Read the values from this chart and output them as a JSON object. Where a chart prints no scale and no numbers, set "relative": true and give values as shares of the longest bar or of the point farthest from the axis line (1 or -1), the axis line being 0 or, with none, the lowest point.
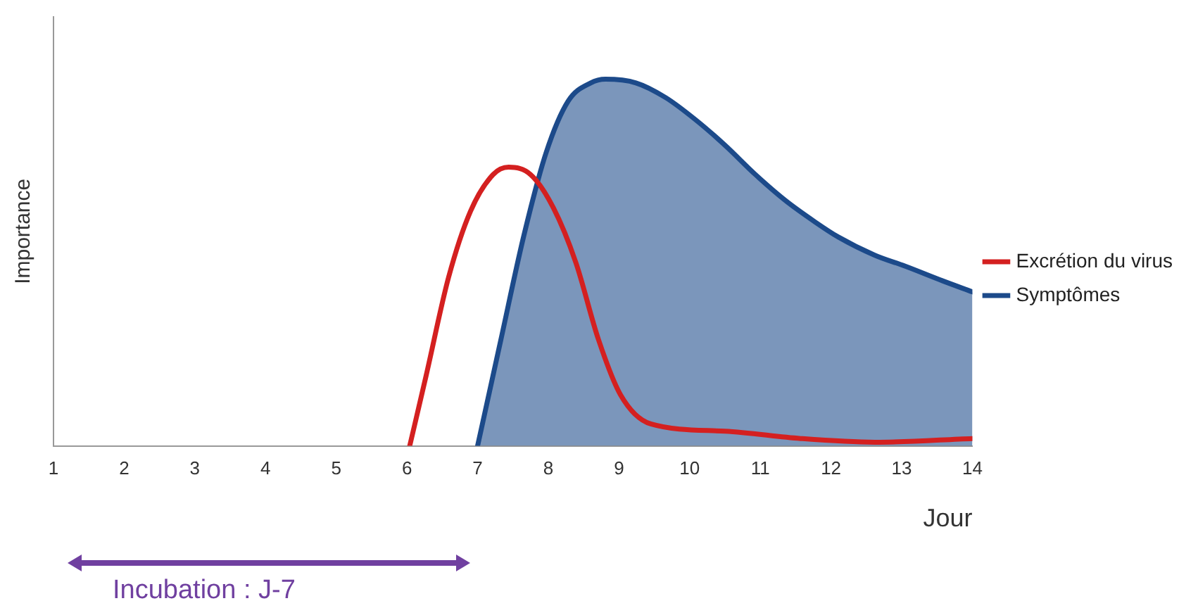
{
  "chart_data": {
    "type": "area",
    "relative": true,
    "xlabel": "Jour",
    "ylabel": "Importance",
    "xlim": [
      1,
      14
    ],
    "xticks": [
      1,
      2,
      3,
      4,
      5,
      6,
      7,
      8,
      9,
      10,
      11,
      12,
      13,
      14
    ],
    "legend": "right",
    "grid": false,
    "marker": "none",
    "annotations": [
      "Incubation : J-7"
    ],
    "series": [
      {
        "name": "Excrétion du virus",
        "type": "line",
        "color": "#d42020",
        "x": [
          6.04,
          6.27,
          6.59,
          6.9,
          7.22,
          7.44,
          7.75,
          8.07,
          8.39,
          8.71,
          9.02,
          9.45,
          10.5,
          11.57,
          12.62,
          14
        ],
        "values": [
          0,
          0.19,
          0.46,
          0.64,
          0.74,
          0.76,
          0.74,
          0.65,
          0.5,
          0.29,
          0.14,
          0.06,
          0.04,
          0.02,
          0.01,
          0.02
        ]
      },
      {
        "name": "Symptômes",
        "type": "area",
        "color": "#1c4a8a",
        "x": [
          7.0,
          7.33,
          7.65,
          7.97,
          8.28,
          8.6,
          8.81,
          9.24,
          9.66,
          10.08,
          10.5,
          10.93,
          11.35,
          11.78,
          12.1,
          12.62,
          13.05,
          13.58,
          14
        ],
        "values": [
          0,
          0.29,
          0.57,
          0.8,
          0.94,
          0.99,
          1,
          0.99,
          0.95,
          0.89,
          0.82,
          0.74,
          0.67,
          0.61,
          0.57,
          0.52,
          0.49,
          0.45,
          0.42
        ]
      }
    ]
  }
}
